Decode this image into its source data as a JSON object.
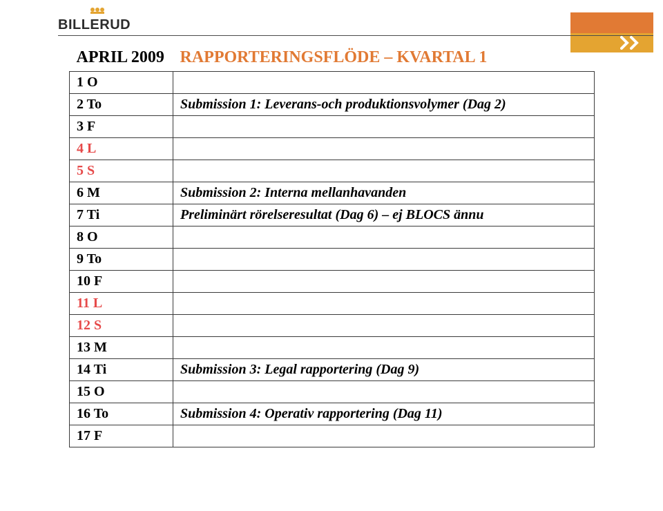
{
  "logo_text": "BILLERUD",
  "header_rule_color": "#4a4a4a",
  "nav": {
    "orange": "#e17a34",
    "gold": "#e4a431",
    "arrow_color": "#ffffff"
  },
  "title": {
    "left": "APRIL 2009",
    "right": "RAPPORTERINGSFLÖDE – KVARTAL 1",
    "right_color": "#e17a34"
  },
  "table": {
    "border_color": "#3a3a3a",
    "weekday_color": "#000000",
    "weekend_color": "#e64a4a",
    "day_fontsize": 20,
    "desc_fontsize": 20,
    "title_fontsize": 24,
    "rows": [
      {
        "day": "1 O",
        "desc": "",
        "weekend": false
      },
      {
        "day": "2 To",
        "desc": "Submission 1: Leverans-och produktionsvolymer (Dag 2)",
        "weekend": false
      },
      {
        "day": "3 F",
        "desc": "",
        "weekend": false
      },
      {
        "day": "4 L",
        "desc": "",
        "weekend": true
      },
      {
        "day": "5 S",
        "desc": "",
        "weekend": true
      },
      {
        "day": "6 M",
        "desc": "Submission 2: Interna mellanhavanden",
        "weekend": false
      },
      {
        "day": "7 Ti",
        "desc": "Preliminärt rörelseresultat (Dag 6) – ej BLOCS ännu",
        "weekend": false
      },
      {
        "day": "8 O",
        "desc": "",
        "weekend": false
      },
      {
        "day": "9 To",
        "desc": "",
        "weekend": false
      },
      {
        "day": "10 F",
        "desc": "",
        "weekend": false
      },
      {
        "day": "11 L",
        "desc": "",
        "weekend": true
      },
      {
        "day": "12 S",
        "desc": "",
        "weekend": true
      },
      {
        "day": "13 M",
        "desc": "",
        "weekend": false
      },
      {
        "day": "14 Ti",
        "desc": "Submission 3: Legal rapportering (Dag 9)",
        "weekend": false
      },
      {
        "day": "15 O",
        "desc": "",
        "weekend": false
      },
      {
        "day": "16 To",
        "desc": "Submission 4: Operativ rapportering (Dag 11)",
        "weekend": false
      },
      {
        "day": "17 F",
        "desc": "",
        "weekend": false
      }
    ]
  }
}
